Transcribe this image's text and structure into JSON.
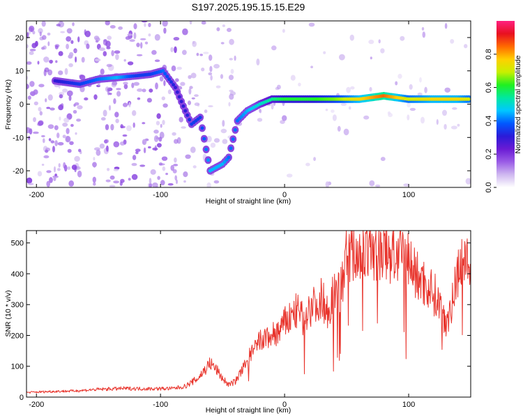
{
  "title": "S197.2025.195.15.15.E29",
  "colors": {
    "snr_line": "#e8332b",
    "spectrum_colormap": [
      "#ffffff",
      "#cfb8f0",
      "#9a5ce6",
      "#6a1bd4",
      "#2b1bd8",
      "#0058ff",
      "#00c8ff",
      "#00e8a0",
      "#20f020",
      "#c8f000",
      "#ffd000",
      "#ff6a00",
      "#e81020",
      "#ff2080"
    ]
  },
  "chart_data": [
    {
      "type": "heatmap",
      "title": "S197.2025.195.15.15.E29",
      "xlabel": "Height of straight line (km)",
      "ylabel": "Frequency (Hz)",
      "xlim": [
        -208,
        150
      ],
      "ylim": [
        -25,
        25
      ],
      "xticks": [
        -200,
        -100,
        0,
        100
      ],
      "yticks": [
        -20,
        -10,
        0,
        10,
        20
      ],
      "colorbar": {
        "label": "Normalized spectral amplitude",
        "range": [
          0,
          1
        ],
        "ticks": [
          0,
          0.2,
          0.4,
          0.6,
          0.8
        ],
        "tick_labels": [
          "0.0",
          "0.2",
          "0.4",
          "0.6",
          "0.8"
        ]
      },
      "ridge": [
        {
          "x": -185,
          "y": 7,
          "amp": 0.3
        },
        {
          "x": -165,
          "y": 6,
          "amp": 0.35
        },
        {
          "x": -150,
          "y": 7.5,
          "amp": 0.4
        },
        {
          "x": -135,
          "y": 8,
          "amp": 0.45
        },
        {
          "x": -120,
          "y": 8.5,
          "amp": 0.35
        },
        {
          "x": -108,
          "y": 9,
          "amp": 0.35
        },
        {
          "x": -98,
          "y": 10,
          "amp": 0.4
        },
        {
          "x": -88,
          "y": 5,
          "amp": 0.3
        },
        {
          "x": -80,
          "y": -2,
          "amp": 0.3
        },
        {
          "x": -75,
          "y": -6,
          "amp": 0.35
        },
        {
          "x": -68,
          "y": -4,
          "amp": 0.35
        },
        {
          "x": -60,
          "y": -20,
          "amp": 0.45
        },
        {
          "x": -50,
          "y": -18,
          "amp": 0.45
        },
        {
          "x": -45,
          "y": -16,
          "amp": 0.4
        },
        {
          "x": -38,
          "y": -5,
          "amp": 0.4
        },
        {
          "x": -30,
          "y": -2,
          "amp": 0.45
        },
        {
          "x": -20,
          "y": 0,
          "amp": 0.5
        },
        {
          "x": -10,
          "y": 1.5,
          "amp": 0.55
        },
        {
          "x": 0,
          "y": 1.5,
          "amp": 0.6
        },
        {
          "x": 20,
          "y": 1.5,
          "amp": 0.6
        },
        {
          "x": 40,
          "y": 1.5,
          "amp": 0.65
        },
        {
          "x": 60,
          "y": 1.5,
          "amp": 0.75
        },
        {
          "x": 80,
          "y": 2.5,
          "amp": 0.85
        },
        {
          "x": 100,
          "y": 1.5,
          "amp": 0.7
        },
        {
          "x": 120,
          "y": 1.5,
          "amp": 0.75
        },
        {
          "x": 140,
          "y": 1.5,
          "amp": 0.75
        },
        {
          "x": 150,
          "y": 1.5,
          "amp": 0.7
        }
      ]
    },
    {
      "type": "line",
      "xlabel": "Height of straight line (km)",
      "ylabel": "SNR (10 * v/v)",
      "xlim": [
        -208,
        150
      ],
      "ylim": [
        0,
        540
      ],
      "xticks": [
        -200,
        -100,
        0,
        100
      ],
      "yticks": [
        0,
        100,
        200,
        300,
        400,
        500
      ],
      "series": [
        {
          "x": [
            -208,
            -190,
            -170,
            -150,
            -130,
            -110,
            -90,
            -80,
            -70,
            -60,
            -55,
            -50,
            -45,
            -40,
            -35,
            -30,
            -25,
            -20,
            -15,
            -10,
            -5,
            0,
            5,
            10,
            15,
            20,
            25,
            30,
            35,
            40,
            45,
            50,
            60,
            70,
            80,
            90,
            100,
            105,
            110,
            115,
            120,
            125,
            130,
            135,
            140,
            145,
            150
          ],
          "y": [
            15,
            18,
            20,
            25,
            28,
            27,
            28,
            35,
            60,
            110,
            90,
            60,
            40,
            50,
            80,
            120,
            150,
            180,
            190,
            200,
            210,
            240,
            260,
            280,
            250,
            290,
            300,
            320,
            280,
            340,
            350,
            460,
            470,
            480,
            470,
            460,
            450,
            400,
            380,
            360,
            340,
            300,
            250,
            300,
            420,
            470,
            380
          ]
        }
      ]
    }
  ]
}
